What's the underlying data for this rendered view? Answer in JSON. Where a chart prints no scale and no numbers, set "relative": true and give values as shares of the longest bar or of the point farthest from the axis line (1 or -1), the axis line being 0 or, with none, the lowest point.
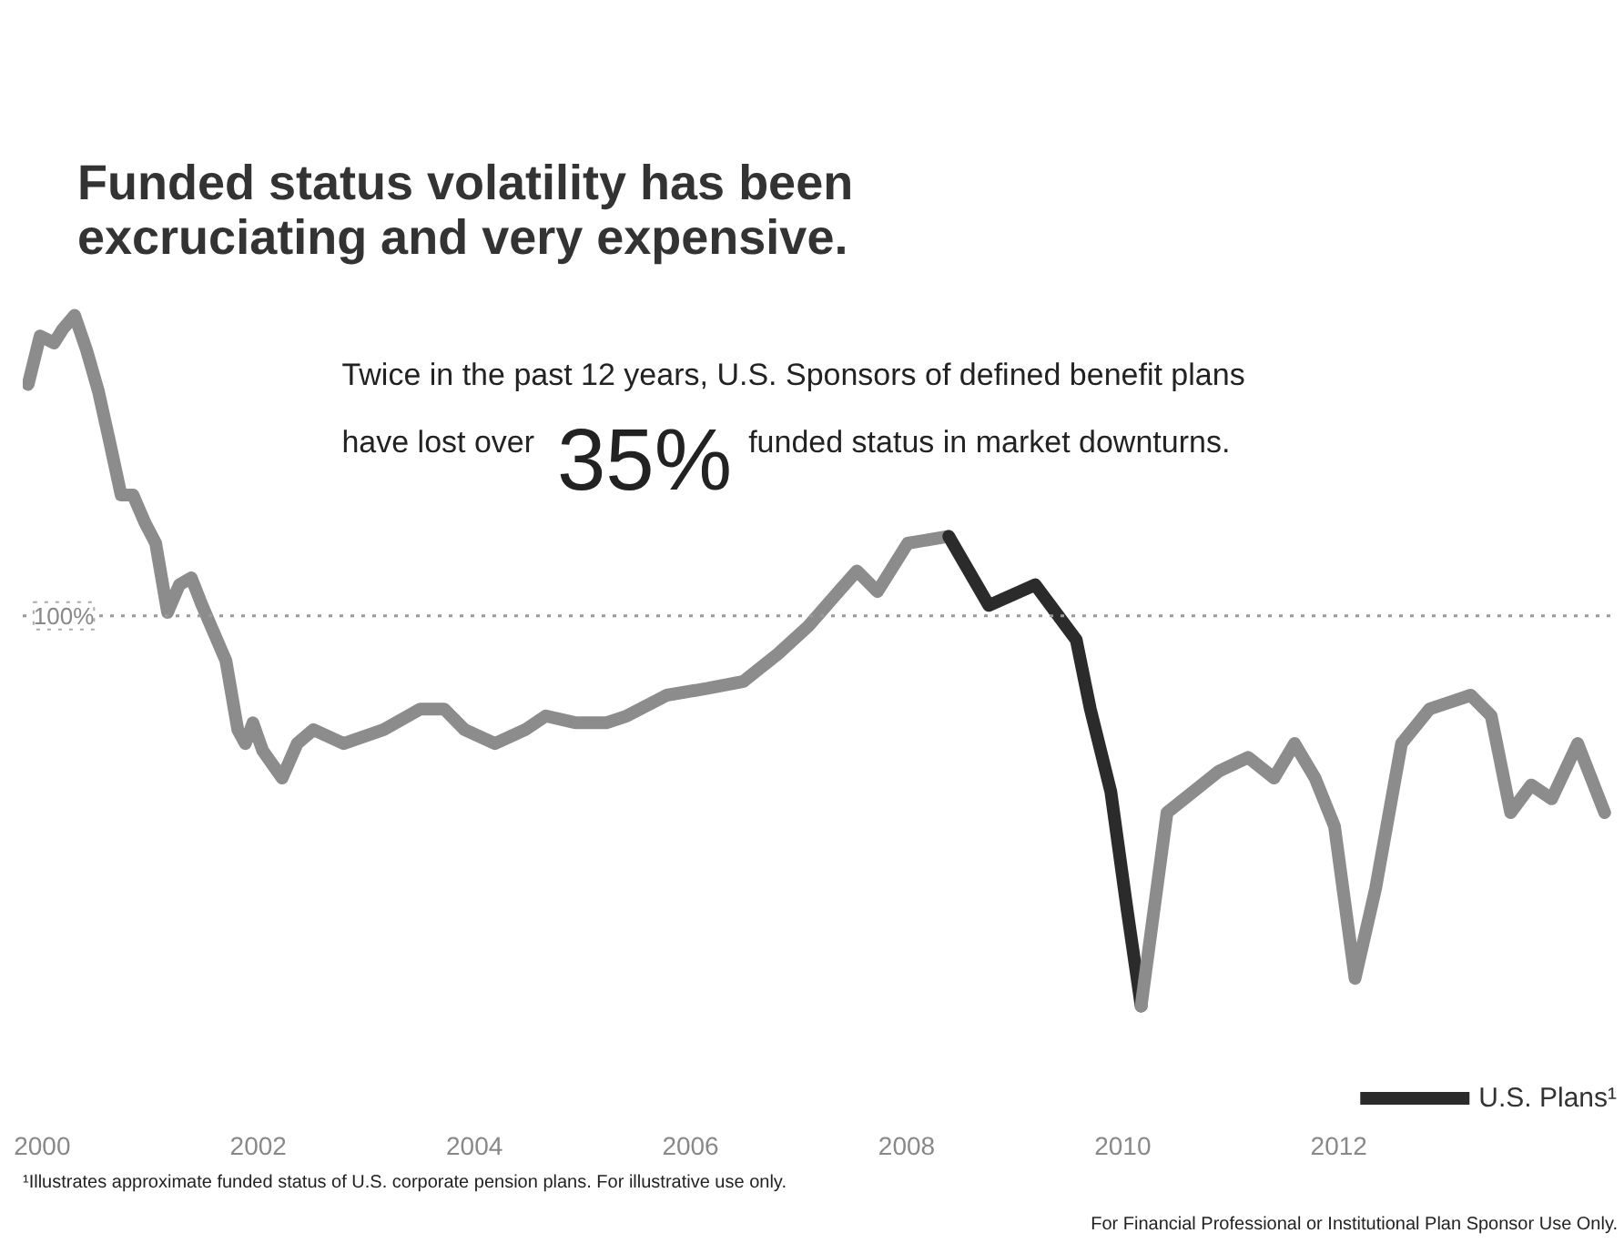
{
  "chart_data": {
    "type": "line",
    "title": "Funded status volatility has been excruciating and very expensive.",
    "relative": true,
    "xlim": [
      1999.82,
      2014.58
    ],
    "xticks": [
      2000,
      2002,
      2004,
      2006,
      2008,
      2010,
      2012
    ],
    "tick_labels": "x",
    "grid": false,
    "legend": "bottom right",
    "line_style": "solid",
    "series": [
      {
        "color": "#8c8c8c",
        "x": [
          1999.87,
          1999.98,
          2000.11,
          2000.19,
          2000.3,
          2000.41,
          2000.52,
          2000.62,
          2000.73,
          2000.84,
          2000.95,
          2001.05,
          2001.16,
          2001.27,
          2001.38,
          2001.48,
          2001.59,
          2001.7,
          2001.81,
          2001.88,
          2001.95,
          2002.04,
          2002.22,
          2002.36,
          2002.51,
          2002.79,
          2003.16,
          2003.5,
          2003.72,
          2003.91,
          2004.19,
          2004.47,
          2004.66,
          2004.94,
          2005.22,
          2005.41,
          2005.78,
          2006.16,
          2006.49,
          2006.81,
          2007.09,
          2007.37,
          2007.54,
          2007.73,
          2008.01,
          2008.39
        ],
        "values": [
          0.9,
          0.97,
          0.96,
          0.98,
          1.0,
          0.95,
          0.89,
          0.82,
          0.74,
          0.74,
          0.7,
          0.67,
          0.57,
          0.61,
          0.62,
          0.58,
          0.54,
          0.5,
          0.4,
          0.38,
          0.41,
          0.37,
          0.33,
          0.38,
          0.4,
          0.38,
          0.4,
          0.43,
          0.43,
          0.4,
          0.38,
          0.4,
          0.42,
          0.41,
          0.41,
          0.42,
          0.45,
          0.46,
          0.47,
          0.51,
          0.55,
          0.6,
          0.63,
          0.6,
          0.67,
          0.68
        ]
      },
      {
        "name": "U.S. Plans¹",
        "color": "#2b2b2b",
        "x": [
          2008.39,
          2008.76,
          2009.19,
          2009.57,
          2009.7,
          2009.89,
          2010.04,
          2010.17
        ],
        "values": [
          0.68,
          0.58,
          0.61,
          0.53,
          0.43,
          0.31,
          0.14,
          0.0
        ]
      },
      {
        "color": "#8c8c8c",
        "x": [
          2010.17,
          2010.41,
          2010.65,
          2010.89,
          2011.16,
          2011.4,
          2011.59,
          2011.78,
          2011.96,
          2012.15,
          2012.34,
          2012.58,
          2012.84,
          2013.22,
          2013.41,
          2013.59,
          2013.78,
          2013.97,
          2014.21,
          2014.46
        ],
        "values": [
          0.0,
          0.28,
          0.31,
          0.34,
          0.36,
          0.33,
          0.38,
          0.33,
          0.26,
          0.04,
          0.17,
          0.38,
          0.43,
          0.45,
          0.42,
          0.28,
          0.32,
          0.3,
          0.38,
          0.28
        ]
      }
    ],
    "ref_lines": [
      {
        "axis": "y",
        "value": 0.565,
        "color": "#9a9a9a",
        "line_style": "dotted"
      }
    ],
    "annotations": [
      "Twice in the past 12 years, U.S. Sponsors of defined benefit plans",
      "have lost over",
      "35%",
      "funded status in market downturns.",
      "¹Illustrates approximate funded status of U.S. corporate pension plans. For illustrative use only.",
      "For Financial Professional or Institutional Plan Sponsor Use Only.",
      {
        "text": "100%",
        "x": 2000.2,
        "y": 0.565
      }
    ]
  }
}
